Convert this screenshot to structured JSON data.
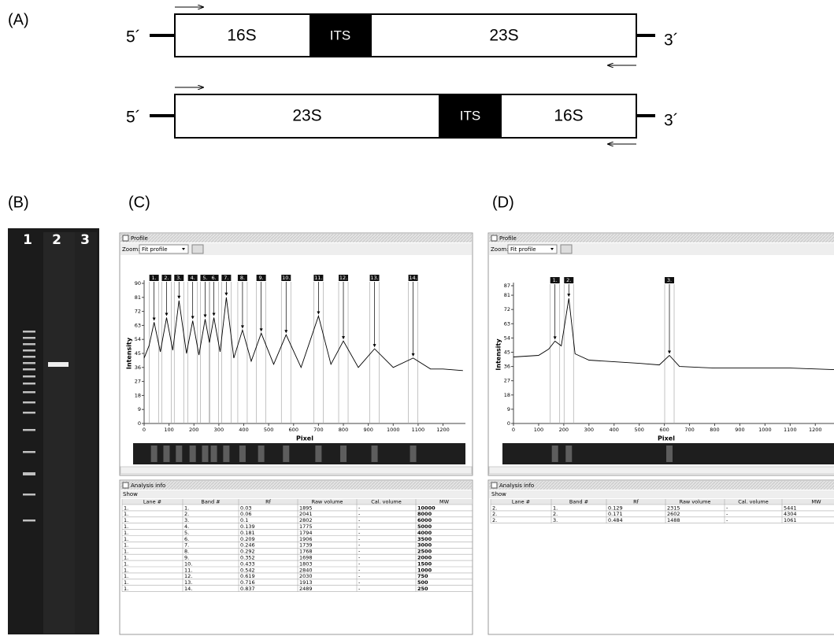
{
  "panels": {
    "a": "(A)",
    "b": "(B)",
    "c": "(C)",
    "d": "(D)"
  },
  "diagram": {
    "rows": [
      {
        "five": "5´",
        "three": "3´",
        "segments": [
          "16S",
          "ITS",
          "23S"
        ]
      },
      {
        "five": "5´",
        "three": "3´",
        "segments": [
          "23S",
          "ITS",
          "16S"
        ]
      }
    ]
  },
  "gel": {
    "lanes": [
      "1",
      "2",
      "3"
    ]
  },
  "profiles": [
    {
      "window_title": "Profile",
      "zoom_label": "Zoom:",
      "zoom_value": "Fit profile",
      "y_label": "Intensity",
      "x_label": "Pixel",
      "xlim": [
        0,
        1290
      ],
      "ylim": [
        0,
        90
      ],
      "xticks": [
        0,
        100,
        200,
        300,
        400,
        500,
        600,
        700,
        800,
        900,
        1000,
        1100,
        1200
      ],
      "yticks": [
        0,
        9,
        18,
        27,
        36,
        45,
        54,
        63,
        72,
        81,
        90
      ],
      "peaks": [
        {
          "label": "1.",
          "x": 40,
          "y": 65
        },
        {
          "label": "2.",
          "x": 90,
          "y": 68
        },
        {
          "label": "3.",
          "x": 140,
          "y": 79
        },
        {
          "label": "4.",
          "x": 195,
          "y": 66
        },
        {
          "label": "5.",
          "x": 245,
          "y": 67
        },
        {
          "label": "6.",
          "x": 280,
          "y": 68
        },
        {
          "label": "7.",
          "x": 330,
          "y": 81
        },
        {
          "label": "8.",
          "x": 395,
          "y": 60
        },
        {
          "label": "9.",
          "x": 470,
          "y": 58
        },
        {
          "label": "10.",
          "x": 570,
          "y": 57
        },
        {
          "label": "11.",
          "x": 700,
          "y": 69
        },
        {
          "label": "12.",
          "x": 800,
          "y": 53
        },
        {
          "label": "13.",
          "x": 925,
          "y": 48
        },
        {
          "label": "14.",
          "x": 1080,
          "y": 42
        }
      ],
      "curve": {
        "x": [
          0,
          20,
          40,
          65,
          90,
          115,
          140,
          170,
          195,
          220,
          245,
          262,
          280,
          305,
          330,
          360,
          395,
          430,
          470,
          520,
          570,
          630,
          700,
          750,
          800,
          860,
          925,
          1000,
          1080,
          1150,
          1200,
          1280
        ],
        "y": [
          42,
          50,
          65,
          46,
          68,
          47,
          79,
          45,
          66,
          44,
          67,
          52,
          68,
          46,
          81,
          42,
          60,
          40,
          58,
          38,
          57,
          36,
          69,
          38,
          53,
          36,
          48,
          36,
          42,
          35,
          35,
          34
        ]
      },
      "analysis": {
        "title": "Analysis info",
        "show": "Show",
        "columns": [
          "Lane #",
          "Band #",
          "Rf",
          "Raw volume",
          "Cal. volume",
          "MW"
        ],
        "rows": [
          [
            "1.",
            "1.",
            "0.03",
            "1895",
            "-",
            "10000"
          ],
          [
            "1.",
            "2.",
            "0.06",
            "2041",
            "-",
            "8000"
          ],
          [
            "1.",
            "3.",
            "0.1",
            "2802",
            "-",
            "6000"
          ],
          [
            "1.",
            "4.",
            "0.139",
            "1775",
            "-",
            "5000"
          ],
          [
            "1.",
            "5.",
            "0.181",
            "1794",
            "-",
            "4000"
          ],
          [
            "1.",
            "6.",
            "0.209",
            "1906",
            "-",
            "3500"
          ],
          [
            "1.",
            "7.",
            "0.246",
            "1739",
            "-",
            "3000"
          ],
          [
            "1.",
            "8.",
            "0.292",
            "1768",
            "-",
            "2500"
          ],
          [
            "1.",
            "9.",
            "0.352",
            "1698",
            "-",
            "2000"
          ],
          [
            "1.",
            "10.",
            "0.433",
            "1803",
            "-",
            "1500"
          ],
          [
            "1.",
            "11.",
            "0.542",
            "2840",
            "-",
            "1000"
          ],
          [
            "1.",
            "12.",
            "0.619",
            "2030",
            "-",
            "750"
          ],
          [
            "1.",
            "13.",
            "0.716",
            "1913",
            "-",
            "500"
          ],
          [
            "1.",
            "14.",
            "0.837",
            "2489",
            "-",
            "250"
          ]
        ]
      }
    },
    {
      "window_title": "Profile",
      "zoom_label": "Zoom:",
      "zoom_value": "Fit profile",
      "y_label": "Intensity",
      "x_label": "Pixel",
      "xlim": [
        0,
        1290
      ],
      "ylim": [
        0,
        87
      ],
      "xticks": [
        0,
        100,
        200,
        300,
        400,
        500,
        600,
        700,
        800,
        900,
        1000,
        1100,
        1200
      ],
      "yticks": [
        0,
        9,
        18,
        27,
        36,
        45,
        54,
        63,
        72,
        81,
        87
      ],
      "peaks": [
        {
          "label": "1.",
          "x": 165,
          "y": 52
        },
        {
          "label": "2.",
          "x": 220,
          "y": 79
        },
        {
          "label": "3.",
          "x": 620,
          "y": 43
        }
      ],
      "curve": {
        "x": [
          0,
          100,
          140,
          165,
          190,
          220,
          245,
          300,
          400,
          500,
          580,
          620,
          660,
          800,
          1000,
          1100,
          1280
        ],
        "y": [
          42,
          43,
          47,
          52,
          49,
          79,
          44,
          40,
          39,
          38,
          37,
          43,
          36,
          35,
          35,
          35,
          34
        ]
      },
      "analysis": {
        "title": "Analysis info",
        "show": "Show",
        "columns": [
          "Lane #",
          "Band #",
          "Rf",
          "Raw volume",
          "Cal. volume",
          "MW"
        ],
        "rows": [
          [
            "2.",
            "1.",
            "0.129",
            "2315",
            "-",
            "5441"
          ],
          [
            "2.",
            "2.",
            "0.171",
            "2602",
            "-",
            "4304"
          ],
          [
            "2.",
            "3.",
            "0.484",
            "1488",
            "-",
            "1061"
          ]
        ]
      }
    }
  ]
}
